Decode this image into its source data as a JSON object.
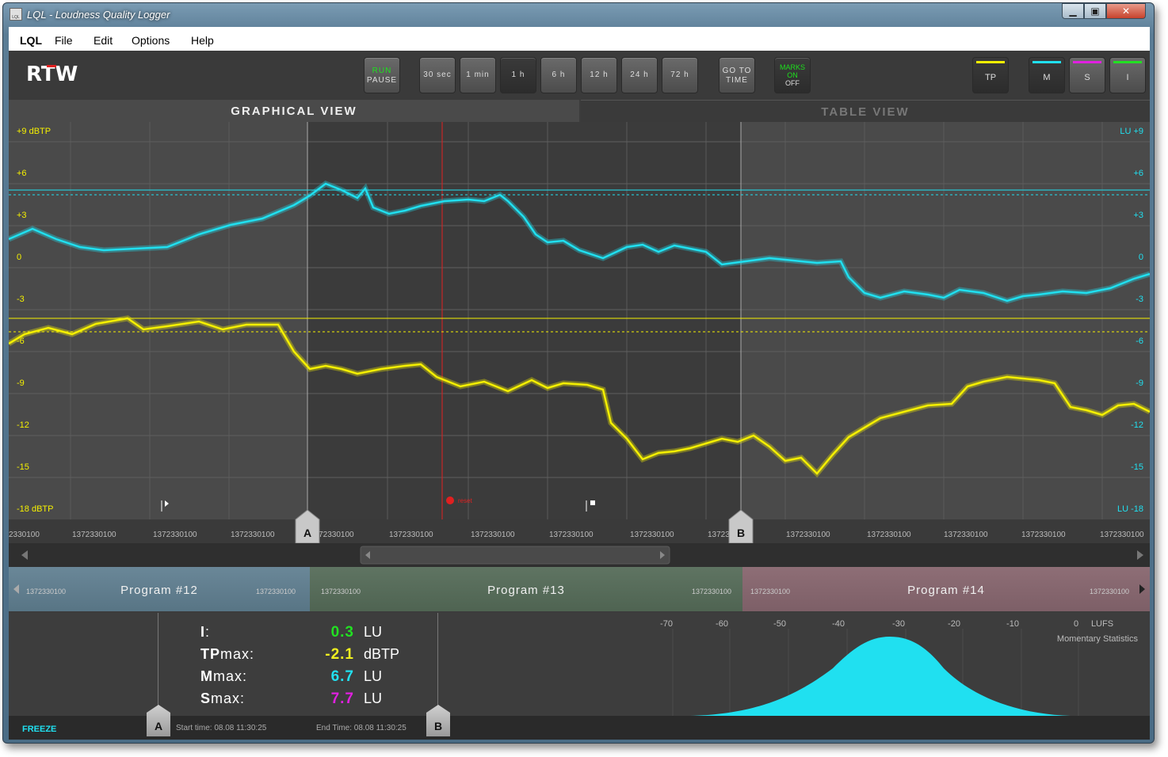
{
  "window": {
    "title": "LQL - Loudness Quality Logger",
    "icon_label": "LQL",
    "controls": {
      "min": "▁",
      "max": "▣",
      "close": "✕"
    }
  },
  "menu": [
    "LQL",
    "File",
    "Edit",
    "Options",
    "Help"
  ],
  "toolbar": {
    "logo": "RTW",
    "run": "RUN",
    "pause": "PAUSE",
    "ranges": [
      "30 sec",
      "1 min",
      "1 h",
      "6 h",
      "12 h",
      "24 h",
      "72 h"
    ],
    "goto": [
      "GO TO",
      "TIME"
    ],
    "marks": [
      "MARKS",
      "ON",
      "OFF"
    ],
    "meters": [
      "TP",
      "M",
      "S",
      "I"
    ]
  },
  "tabs": {
    "graph": "GRAPHICAL VIEW",
    "table": "TABLE VIEW"
  },
  "graph": {
    "left_ticks": [
      "+9 dBTP",
      "+6",
      "+3",
      "0",
      "-3",
      "-6",
      "-9",
      "-12",
      "-15",
      "-18 dBTP"
    ],
    "right_ticks": [
      "LU +9",
      "+6",
      "+3",
      "0",
      "-3",
      "-6",
      "-9",
      "-12",
      "-15",
      "LU -18"
    ],
    "time_labels": [
      "2330100",
      "1372330100",
      "1372330100",
      "1372330100",
      "1372330100",
      "1372330100",
      "1372330100",
      "1372330100",
      "1372330100",
      "1372330100",
      "1372330100",
      "1372330100",
      "1372330100",
      "1372330100",
      "1372330100"
    ],
    "reset_label": "reset",
    "marker_a": "A",
    "marker_b": "B"
  },
  "programs": [
    {
      "name": "Program #12",
      "start": "1372330100",
      "end": "1372330100"
    },
    {
      "name": "Program #13",
      "start": "1372330100",
      "end": "1372330100"
    },
    {
      "name": "Program #14",
      "start": "1372330100",
      "end": "1372330100"
    }
  ],
  "stats": {
    "rows": [
      {
        "key": "I",
        "suffix": ":",
        "value": "0.3",
        "unit": "LU",
        "color": "#22e022"
      },
      {
        "key": "TP",
        "suffix": "max:",
        "value": "-2.1",
        "unit": "dBTP",
        "color": "#f0f020"
      },
      {
        "key": "M",
        "suffix": "max:",
        "value": "6.7",
        "unit": "LU",
        "color": "#22e0f0"
      },
      {
        "key": "S",
        "suffix": "max:",
        "value": "7.7",
        "unit": "LU",
        "color": "#e020e0"
      }
    ],
    "hist_ticks": [
      "-70",
      "-60",
      "-50",
      "-40",
      "-30",
      "-20",
      "-10",
      "0"
    ],
    "hist_unit": "LUFS",
    "hist_title": "Momentary Statistics"
  },
  "bottom": {
    "freeze": "FREEZE",
    "start_time": "Start time: 08.08 11:30:25",
    "end_time": "End Time: 08.08 11:30:25",
    "marker_a": "A",
    "marker_b": "B"
  },
  "colors": {
    "tp": "#f5f000",
    "m": "#20e0f0",
    "s": "#e020e0",
    "i": "#22e022"
  }
}
